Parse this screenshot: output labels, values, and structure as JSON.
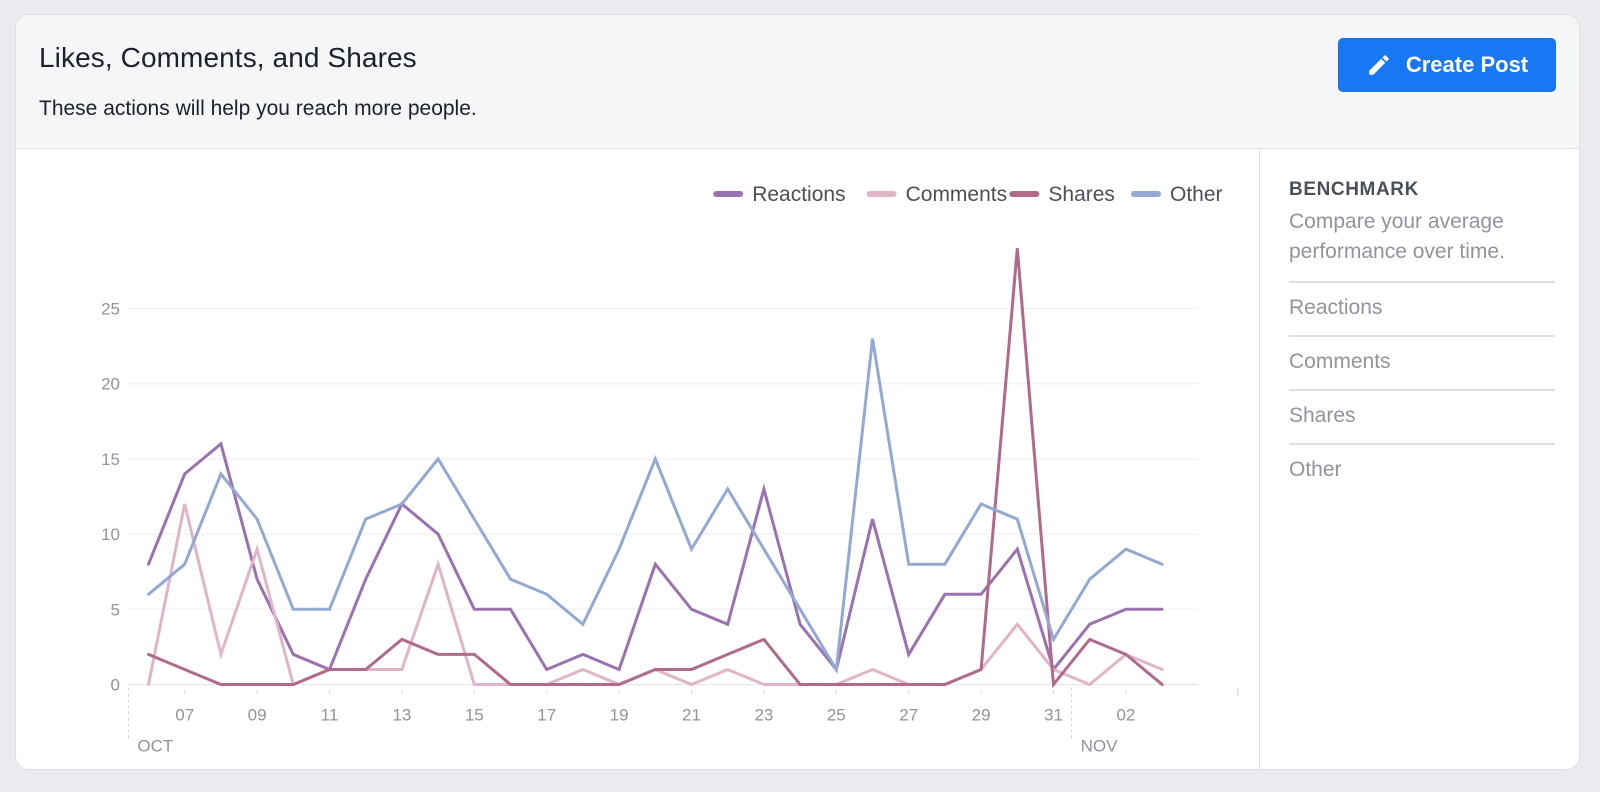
{
  "header": {
    "title": "Likes, Comments, and Shares",
    "subtitle": "These actions will help you reach more people.",
    "create_post_label": "Create Post",
    "create_post_icon": "pencil-icon",
    "button_color": "#1877f2"
  },
  "benchmark": {
    "title": "BENCHMARK",
    "description": "Compare your average performance over time.",
    "items": [
      "Reactions",
      "Comments",
      "Shares",
      "Other"
    ]
  },
  "chart_data": {
    "type": "line",
    "title": "",
    "xlabel": "",
    "ylabel": "",
    "ylim": [
      0,
      25
    ],
    "yticks": [
      0,
      5,
      10,
      15,
      20,
      25
    ],
    "grid": true,
    "legend_position": "top-right",
    "x": [
      "Oct 06",
      "Oct 07",
      "Oct 08",
      "Oct 09",
      "Oct 10",
      "Oct 11",
      "Oct 12",
      "Oct 13",
      "Oct 14",
      "Oct 15",
      "Oct 16",
      "Oct 17",
      "Oct 18",
      "Oct 19",
      "Oct 20",
      "Oct 21",
      "Oct 22",
      "Oct 23",
      "Oct 24",
      "Oct 25",
      "Oct 26",
      "Oct 27",
      "Oct 28",
      "Oct 29",
      "Oct 30",
      "Oct 31",
      "Nov 01",
      "Nov 02",
      "Nov 03",
      "Nov 04"
    ],
    "x_tick_labels": [
      {
        "index": 1,
        "label": "07"
      },
      {
        "index": 3,
        "label": "09"
      },
      {
        "index": 5,
        "label": "11"
      },
      {
        "index": 7,
        "label": "13"
      },
      {
        "index": 9,
        "label": "15"
      },
      {
        "index": 11,
        "label": "17"
      },
      {
        "index": 13,
        "label": "19"
      },
      {
        "index": 15,
        "label": "21"
      },
      {
        "index": 17,
        "label": "23"
      },
      {
        "index": 19,
        "label": "25"
      },
      {
        "index": 21,
        "label": "27"
      },
      {
        "index": 23,
        "label": "29"
      },
      {
        "index": 25,
        "label": "31"
      },
      {
        "index": 27,
        "label": "02"
      }
    ],
    "month_labels": [
      {
        "label": "OCT",
        "index": -0.5
      },
      {
        "label": "NOV",
        "index": 25.5
      }
    ],
    "series": [
      {
        "name": "Reactions",
        "color": "#9b72b0",
        "values": [
          8,
          14,
          16,
          7,
          2,
          1,
          7,
          12,
          10,
          5,
          5,
          1,
          2,
          1,
          8,
          5,
          4,
          13,
          4,
          1,
          11,
          2,
          6,
          6,
          9,
          1,
          4,
          5,
          5,
          null
        ]
      },
      {
        "name": "Comments",
        "color": "#e0b5c8",
        "values": [
          0,
          12,
          2,
          9,
          0,
          1,
          1,
          1,
          8,
          0,
          0,
          0,
          1,
          0,
          1,
          0,
          1,
          0,
          0,
          0,
          1,
          0,
          0,
          1,
          4,
          1,
          0,
          2,
          1,
          null
        ]
      },
      {
        "name": "Shares",
        "color": "#b06a8a",
        "values": [
          2,
          1,
          0,
          0,
          0,
          1,
          1,
          3,
          2,
          2,
          0,
          0,
          0,
          0,
          1,
          1,
          2,
          3,
          0,
          0,
          0,
          0,
          0,
          1,
          29,
          0,
          3,
          2,
          0,
          null
        ]
      },
      {
        "name": "Other",
        "color": "#93a8d2",
        "values": [
          6,
          8,
          14,
          11,
          5,
          5,
          11,
          12,
          15,
          11,
          7,
          6,
          4,
          9,
          15,
          9,
          13,
          9,
          5,
          1,
          23,
          8,
          8,
          12,
          11,
          3,
          7,
          9,
          8,
          null
        ]
      }
    ]
  }
}
